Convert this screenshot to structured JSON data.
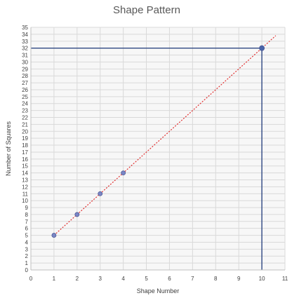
{
  "chart_data": {
    "type": "scatter",
    "title": "Shape Pattern",
    "xlabel": "Shape Number",
    "ylabel": "Number of Squares",
    "xlim": [
      0,
      11
    ],
    "ylim": [
      0,
      35
    ],
    "x_ticks": [
      0,
      1,
      2,
      3,
      4,
      5,
      6,
      7,
      8,
      9,
      10,
      11
    ],
    "y_ticks": [
      0,
      1,
      2,
      3,
      4,
      5,
      6,
      7,
      8,
      9,
      10,
      11,
      12,
      13,
      14,
      15,
      16,
      17,
      18,
      19,
      20,
      21,
      22,
      23,
      24,
      25,
      26,
      27,
      28,
      29,
      30,
      31,
      32,
      33,
      34,
      35
    ],
    "grid": true,
    "series": [
      {
        "points": [
          {
            "x": 1,
            "y": 5
          },
          {
            "x": 2,
            "y": 8
          },
          {
            "x": 3,
            "y": 11
          },
          {
            "x": 4,
            "y": 14
          }
        ],
        "color": "#7a86c6"
      },
      {
        "points": [
          {
            "x": 10,
            "y": 32
          }
        ],
        "color": "#4a64a8"
      }
    ],
    "trendline": {
      "x": [
        1,
        10.6
      ],
      "y": [
        5,
        33.8
      ],
      "style": "dotted",
      "color": "#e03030"
    },
    "guide_lines": {
      "x": 10,
      "y": 32,
      "color": "#1f3a7a"
    }
  }
}
